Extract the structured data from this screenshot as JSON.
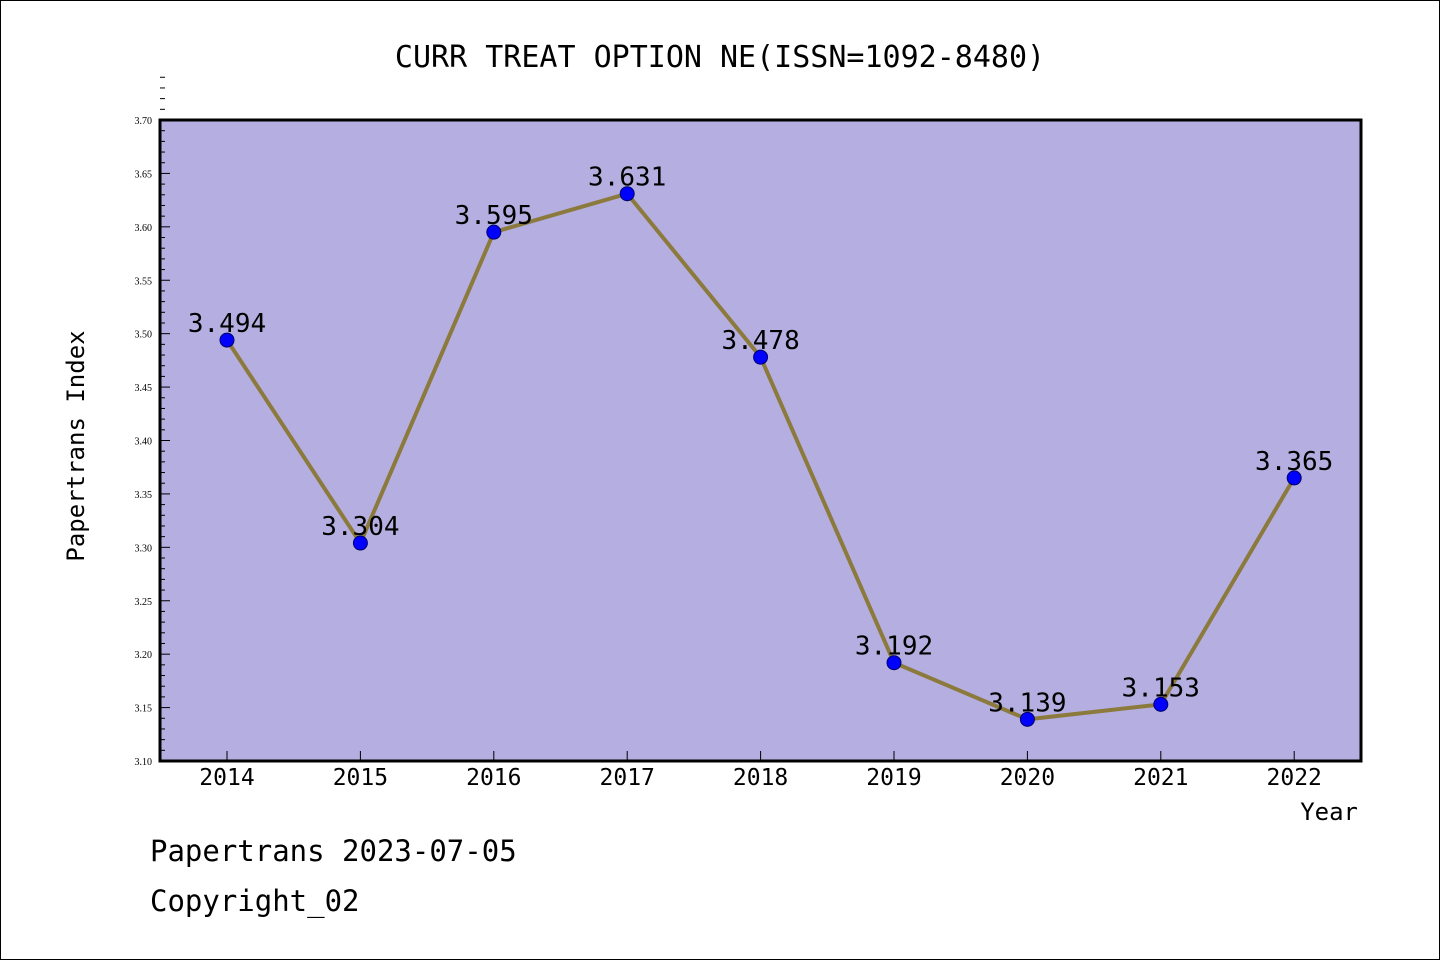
{
  "chart_data": {
    "type": "line",
    "title": "CURR TREAT OPTION NE(ISSN=1092-8480)",
    "xlabel": "Year",
    "ylabel": "Papertrans Index",
    "categories": [
      "2014",
      "2015",
      "2016",
      "2017",
      "2018",
      "2019",
      "2020",
      "2021",
      "2022"
    ],
    "series": [
      {
        "values": [
          3.494,
          3.304,
          3.595,
          3.631,
          3.478,
          3.192,
          3.139,
          3.153,
          3.365
        ],
        "labels": [
          "3.494",
          "3.304",
          "3.595",
          "3.631",
          "3.478",
          "3.192",
          "3.139",
          "3.153",
          "3.365"
        ]
      }
    ],
    "ylim": [
      3.1,
      3.7
    ],
    "yticks": [
      "3.10",
      "3.15",
      "3.20",
      "3.25",
      "3.30",
      "3.35",
      "3.40",
      "3.45",
      "3.50",
      "3.55",
      "3.60",
      "3.65",
      "3.70"
    ],
    "grid": false,
    "legend": "none",
    "colors": {
      "plot_background": "#b4aee1",
      "line": "#8b7a3c",
      "marker": "#0000ff"
    }
  },
  "footer": {
    "date_line": "Papertrans 2023-07-05",
    "copyright": "Copyright_02"
  }
}
